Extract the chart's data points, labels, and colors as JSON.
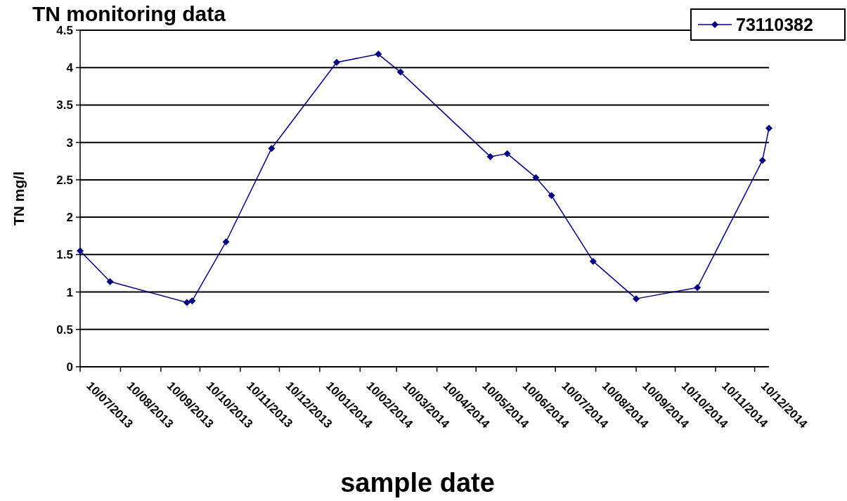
{
  "chart_data": {
    "type": "line",
    "title": "TN monitoring data",
    "xlabel": "sample date",
    "ylabel": "TN mg/l",
    "x": [
      "2013-07-10",
      "2013-08-02",
      "2013-09-30",
      "2013-10-04",
      "2013-10-30",
      "2013-12-04",
      "2014-01-23",
      "2014-02-24",
      "2014-03-13",
      "2014-05-21",
      "2014-06-03",
      "2014-06-25",
      "2014-07-07",
      "2014-08-08",
      "2014-09-10",
      "2014-10-27",
      "2014-12-16",
      "2014-12-21"
    ],
    "series": [
      {
        "name": "73110382",
        "color": "#000080",
        "values": [
          1.55,
          1.14,
          0.86,
          0.88,
          1.67,
          2.92,
          4.07,
          4.18,
          3.94,
          2.81,
          2.85,
          2.53,
          2.29,
          1.41,
          0.91,
          1.06,
          2.76,
          3.19
        ]
      }
    ],
    "xlim": [
      "2013-07-10",
      "2014-12-21"
    ],
    "xticks": [
      {
        "value": "2013-07-10",
        "label": "10/07/2013"
      },
      {
        "value": "2013-08-10",
        "label": "10/08/2013"
      },
      {
        "value": "2013-09-10",
        "label": "10/09/2013"
      },
      {
        "value": "2013-10-10",
        "label": "10/10/2013"
      },
      {
        "value": "2013-11-10",
        "label": "10/11/2013"
      },
      {
        "value": "2013-12-10",
        "label": "10/12/2013"
      },
      {
        "value": "2014-01-10",
        "label": "10/01/2014"
      },
      {
        "value": "2014-02-10",
        "label": "10/02/2014"
      },
      {
        "value": "2014-03-10",
        "label": "10/03/2014"
      },
      {
        "value": "2014-04-10",
        "label": "10/04/2014"
      },
      {
        "value": "2014-05-10",
        "label": "10/05/2014"
      },
      {
        "value": "2014-06-10",
        "label": "10/06/2014"
      },
      {
        "value": "2014-07-10",
        "label": "10/07/2014"
      },
      {
        "value": "2014-08-10",
        "label": "10/08/2014"
      },
      {
        "value": "2014-09-10",
        "label": "10/09/2014"
      },
      {
        "value": "2014-10-10",
        "label": "10/10/2014"
      },
      {
        "value": "2014-11-10",
        "label": "10/11/2014"
      },
      {
        "value": "2014-12-10",
        "label": "10/12/2014"
      }
    ],
    "ylim": [
      0,
      4.5
    ],
    "yticks": [
      0,
      0.5,
      1,
      1.5,
      2,
      2.5,
      3,
      3.5,
      4,
      4.5
    ],
    "grid": "y",
    "legend": "top right",
    "marker": "diamond",
    "line_style": "solid"
  }
}
